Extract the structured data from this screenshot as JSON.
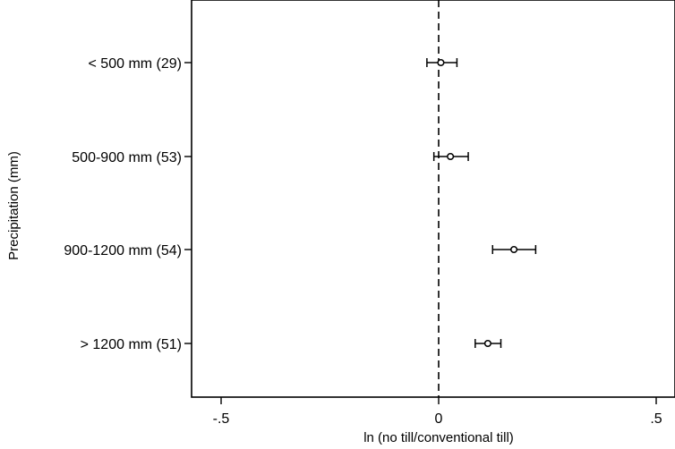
{
  "chart_data": {
    "type": "scatter",
    "subtype": "forest-plot",
    "title": "",
    "xlabel": "ln (no till/conventional till)",
    "ylabel": "Precipitation (mm)",
    "xlim": [
      -0.6,
      0.5
    ],
    "xticks": [
      {
        "value": -0.5,
        "label": "-.5"
      },
      {
        "value": 0,
        "label": "0"
      },
      {
        "value": 0.5,
        "label": ".5"
      }
    ],
    "reference_line": {
      "x": 0,
      "style": "dashed"
    },
    "grid": false,
    "legend": "none",
    "categories": [
      "< 500 mm (29)",
      "500-900 mm (53)",
      "900-1200 mm (54)",
      "> 1200 mm (51)"
    ],
    "estimates": [
      0.005,
      0.027,
      0.173,
      0.113
    ],
    "ci_low": [
      -0.027,
      -0.011,
      0.124,
      0.084
    ],
    "ci_high": [
      0.042,
      0.068,
      0.223,
      0.143
    ]
  }
}
